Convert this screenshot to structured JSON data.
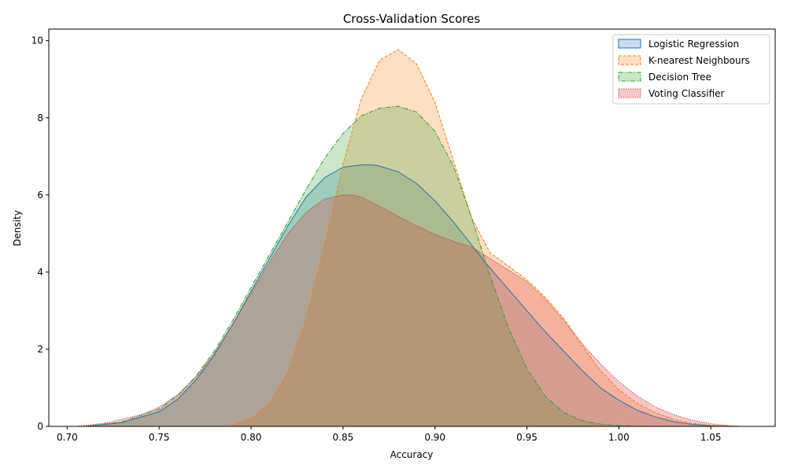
{
  "chart_data": {
    "type": "area",
    "title": "Cross-Validation Scores",
    "xlabel": "Accuracy",
    "ylabel": "Density",
    "xlim": [
      0.69,
      1.085
    ],
    "ylim": [
      0,
      10.3
    ],
    "xticks": [
      "0.70",
      "0.75",
      "0.80",
      "0.85",
      "0.90",
      "0.95",
      "1.00",
      "1.05"
    ],
    "yticks": [
      "0",
      "2",
      "4",
      "6",
      "8",
      "10"
    ],
    "legend_position": "top-right",
    "grid": false,
    "series": [
      {
        "name": "Logistic Regression",
        "color": "#1f77b4",
        "line_style": "solid",
        "fill_alpha": 0.25,
        "x": [
          0.71,
          0.73,
          0.75,
          0.76,
          0.77,
          0.78,
          0.79,
          0.8,
          0.81,
          0.82,
          0.83,
          0.84,
          0.85,
          0.86,
          0.866,
          0.87,
          0.88,
          0.89,
          0.9,
          0.91,
          0.92,
          0.93,
          0.94,
          0.95,
          0.96,
          0.97,
          0.98,
          0.99,
          1.0,
          1.01,
          1.02,
          1.03,
          1.04,
          1.05,
          1.06
        ],
        "y": [
          0.0,
          0.1,
          0.38,
          0.7,
          1.2,
          1.85,
          2.65,
          3.5,
          4.35,
          5.2,
          5.95,
          6.45,
          6.72,
          6.78,
          6.78,
          6.75,
          6.6,
          6.3,
          5.85,
          5.3,
          4.7,
          4.1,
          3.55,
          3.0,
          2.45,
          1.95,
          1.45,
          1.0,
          0.68,
          0.42,
          0.24,
          0.12,
          0.05,
          0.015,
          0.0
        ]
      },
      {
        "name": "K-nearest Neighbours",
        "color": "#ff7f0e",
        "line_style": "dashed",
        "fill_alpha": 0.25,
        "x": [
          0.788,
          0.8,
          0.81,
          0.82,
          0.83,
          0.84,
          0.85,
          0.86,
          0.87,
          0.88,
          0.89,
          0.9,
          0.91,
          0.92,
          0.93,
          0.94,
          0.95,
          0.96,
          0.97,
          0.98,
          0.99,
          1.0,
          1.01,
          1.02,
          1.03,
          1.04,
          1.05,
          1.06,
          1.066
        ],
        "y": [
          0.0,
          0.2,
          0.6,
          1.4,
          2.8,
          4.7,
          6.8,
          8.5,
          9.5,
          9.77,
          9.4,
          8.4,
          6.9,
          5.4,
          4.5,
          4.15,
          3.8,
          3.35,
          2.8,
          2.1,
          1.45,
          0.95,
          0.6,
          0.35,
          0.18,
          0.08,
          0.03,
          0.01,
          0.0
        ]
      },
      {
        "name": "Decision Tree",
        "color": "#2ca02c",
        "line_style": "dashdot",
        "fill_alpha": 0.25,
        "x": [
          0.71,
          0.73,
          0.75,
          0.76,
          0.77,
          0.78,
          0.79,
          0.8,
          0.81,
          0.82,
          0.83,
          0.84,
          0.85,
          0.86,
          0.87,
          0.88,
          0.89,
          0.9,
          0.91,
          0.92,
          0.93,
          0.94,
          0.95,
          0.96,
          0.97,
          0.98,
          0.99,
          1.0,
          1.01,
          1.02
        ],
        "y": [
          0.0,
          0.12,
          0.45,
          0.8,
          1.3,
          1.95,
          2.75,
          3.6,
          4.45,
          5.3,
          6.15,
          6.95,
          7.6,
          8.05,
          8.25,
          8.3,
          8.15,
          7.65,
          6.75,
          5.4,
          3.9,
          2.55,
          1.5,
          0.78,
          0.36,
          0.15,
          0.06,
          0.02,
          0.005,
          0.0
        ]
      },
      {
        "name": "Voting Classifier",
        "color": "#d62728",
        "line_style": "dotted",
        "fill_alpha": 0.25,
        "x": [
          0.705,
          0.72,
          0.74,
          0.75,
          0.76,
          0.77,
          0.78,
          0.79,
          0.8,
          0.81,
          0.82,
          0.83,
          0.84,
          0.85,
          0.855,
          0.86,
          0.87,
          0.88,
          0.89,
          0.9,
          0.91,
          0.92,
          0.93,
          0.94,
          0.95,
          0.96,
          0.97,
          0.98,
          0.99,
          1.0,
          1.01,
          1.02,
          1.03,
          1.04,
          1.05,
          1.06,
          1.066
        ],
        "y": [
          0.0,
          0.08,
          0.3,
          0.5,
          0.82,
          1.28,
          1.9,
          2.65,
          3.45,
          4.25,
          5.0,
          5.55,
          5.9,
          6.0,
          6.0,
          5.95,
          5.7,
          5.45,
          5.2,
          4.98,
          4.8,
          4.65,
          4.35,
          4.05,
          3.75,
          3.3,
          2.75,
          2.15,
          1.62,
          1.16,
          0.79,
          0.5,
          0.3,
          0.16,
          0.07,
          0.02,
          0.0
        ]
      }
    ]
  }
}
